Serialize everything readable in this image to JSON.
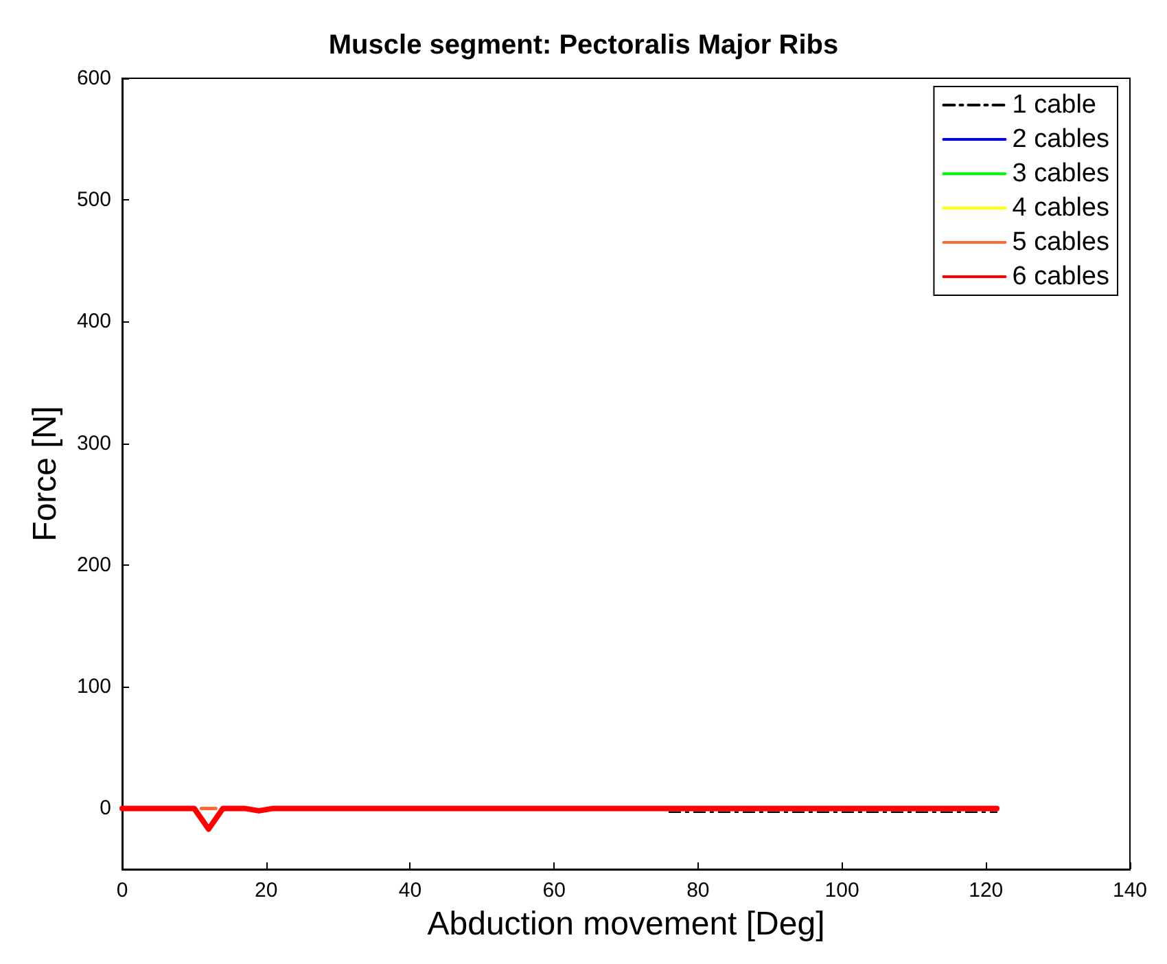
{
  "chart_data": {
    "type": "line",
    "title": "Muscle segment: Pectoralis Major Ribs",
    "xlabel": "Abduction movement [Deg]",
    "ylabel": "Force [N]",
    "xlim": [
      0,
      140
    ],
    "xticks": [
      0,
      20,
      40,
      60,
      80,
      100,
      120,
      140
    ],
    "ylim": [
      -50,
      600
    ],
    "yticks": [
      0,
      100,
      200,
      300,
      400,
      500,
      600
    ],
    "grid": false,
    "legend": "top right",
    "marker": "none",
    "series": [
      {
        "name": "1 cable",
        "color": "#000000",
        "line_style": "dashdot",
        "x": [
          76,
          121.5
        ],
        "values": [
          -3,
          -3
        ]
      },
      {
        "name": "2 cables",
        "color": "#0000ff"
      },
      {
        "name": "3 cables",
        "color": "#00ff00"
      },
      {
        "name": "4 cables",
        "color": "#ffff00"
      },
      {
        "name": "5 cables",
        "color": "#ff6a33",
        "x": [
          11,
          13
        ],
        "values": [
          0,
          0
        ]
      },
      {
        "name": "6 cables",
        "color": "#ff0000",
        "x": [
          0,
          10,
          12,
          14,
          17,
          19,
          21,
          121.5
        ],
        "values": [
          0,
          0,
          -17,
          0,
          0,
          -2,
          0,
          0
        ]
      }
    ]
  }
}
